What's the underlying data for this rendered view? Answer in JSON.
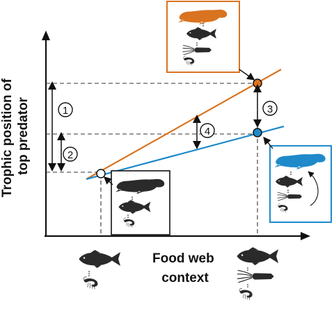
{
  "axes": {
    "y_label_line1": "Trophic position of",
    "y_label_line2": "top predator",
    "x_label_line1": "Food web",
    "x_label_line2": "context"
  },
  "markers": [
    {
      "id": "1",
      "meaning": "difference in trophic position between orange and reference point"
    },
    {
      "id": "2",
      "meaning": "difference in trophic position between blue and reference point"
    },
    {
      "id": "3",
      "meaning": "vertical gap between orange and blue endpoints"
    },
    {
      "id": "4",
      "meaning": "gap between orange and blue lines"
    }
  ],
  "colors": {
    "orange": "#d9731f",
    "blue": "#1f8ac9",
    "silhouette": "#2a2a2a",
    "axis": "#111111"
  },
  "icons": {
    "orange_box": [
      "seal-icon",
      "fish-icon",
      "squid-icon",
      "shrimp-icon"
    ],
    "blue_box": [
      "seal-icon",
      "fish-icon",
      "squid-icon",
      "shrimp-icon"
    ],
    "black_box": [
      "seal-icon",
      "fish-icon",
      "shrimp-icon"
    ],
    "x_axis_left": [
      "fish-icon",
      "shrimp-icon"
    ],
    "x_axis_right": [
      "fish-icon",
      "squid-icon",
      "shrimp-icon"
    ]
  }
}
